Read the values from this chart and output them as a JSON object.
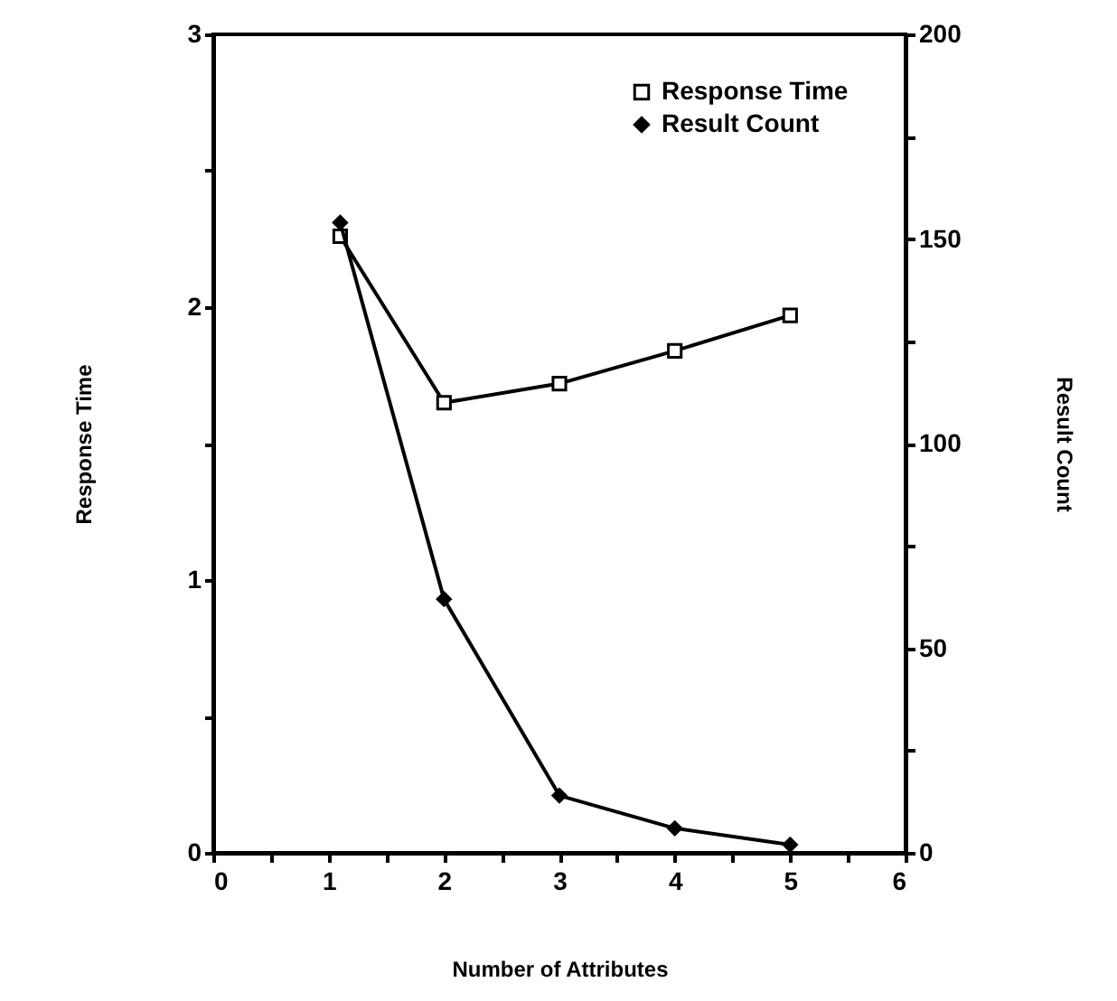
{
  "chart_data": {
    "type": "line",
    "xlabel": "Number of Attributes",
    "ylabel": "Response Time",
    "y2label": "Result Count",
    "x": [
      1.1,
      2,
      3,
      4,
      5
    ],
    "series": [
      {
        "name": "Response Time",
        "color": "#000000",
        "marker": "square",
        "values": [
          2.26,
          1.65,
          1.72,
          1.84,
          1.97
        ]
      },
      {
        "name": "Result Count",
        "color": "#000000",
        "marker": "diamond",
        "axis": "y2",
        "values": [
          154,
          62,
          14,
          6,
          2
        ]
      }
    ],
    "xlim": [
      0,
      6
    ],
    "xticks": [
      0,
      {
        "value": 0.5,
        "label": null
      },
      1,
      {
        "value": 1.5,
        "label": null
      },
      2,
      {
        "value": 2.5,
        "label": null
      },
      3,
      {
        "value": 3.5,
        "label": null
      },
      4,
      {
        "value": 4.5,
        "label": null
      },
      5,
      {
        "value": 5.5,
        "label": null
      },
      6
    ],
    "ylim": [
      0,
      3
    ],
    "yticks": [
      0,
      {
        "value": 0.5,
        "label": null
      },
      1,
      {
        "value": 1.5,
        "label": null
      },
      2,
      {
        "value": 2.5,
        "label": null
      },
      3
    ],
    "y2lim": [
      0,
      200
    ],
    "y2ticks": [
      0,
      {
        "value": 25,
        "label": null
      },
      50,
      {
        "value": 75,
        "label": null
      },
      100,
      {
        "value": 125,
        "label": null
      },
      150,
      {
        "value": 175,
        "label": null
      },
      200
    ],
    "legend": "top right",
    "grid": false,
    "line_style": "solid"
  }
}
